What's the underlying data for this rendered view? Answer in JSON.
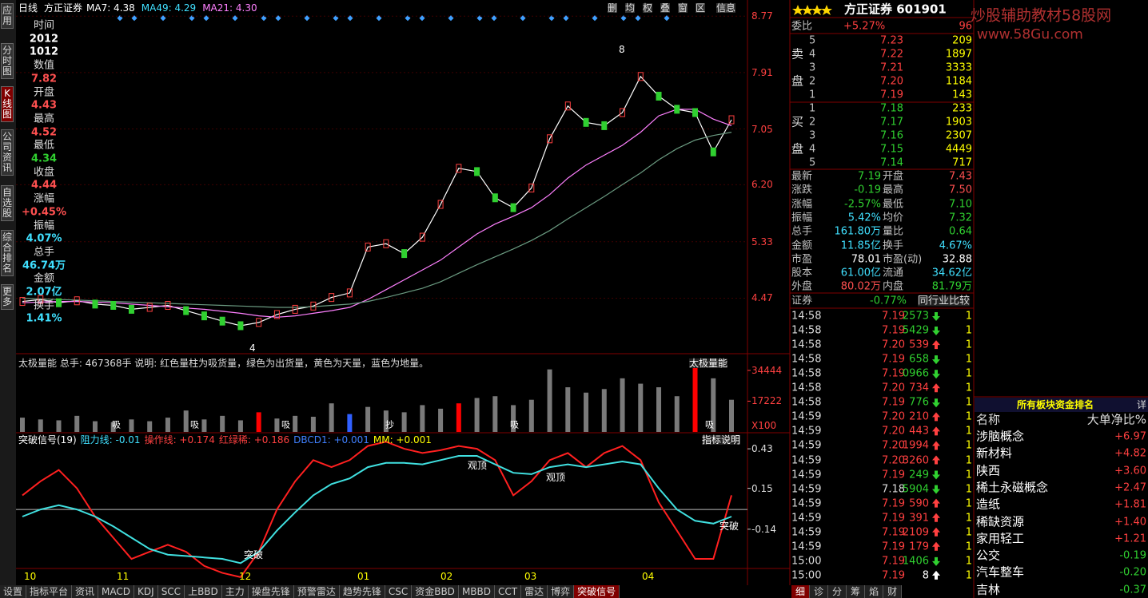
{
  "top_bar": {
    "period": "日线",
    "stock": "方正证券",
    "ma_labels": [
      {
        "text": "MA7: 4.38",
        "color": "#ffffff"
      },
      {
        "text": "MA49: 4.29",
        "color": "#40e0ff"
      },
      {
        "text": "MA21: 4.30",
        "color": "#ff80ff"
      }
    ],
    "buttons": [
      "删",
      "均",
      "权",
      "叠",
      "窗",
      "区",
      "信息"
    ]
  },
  "sidebar": [
    "应用",
    "分时图",
    "K线图",
    "公司资讯",
    "自选股",
    "综合排名",
    "更多"
  ],
  "info_panel": [
    {
      "label": "时间",
      "values": [
        "2012",
        "1012"
      ],
      "color": "#ffffff"
    },
    {
      "label": "数值",
      "values": [
        "7.82"
      ],
      "color": "#ff5050"
    },
    {
      "label": "开盘",
      "values": [
        "4.43"
      ],
      "color": "#ff5050"
    },
    {
      "label": "最高",
      "values": [
        "4.52"
      ],
      "color": "#ff5050"
    },
    {
      "label": "最低",
      "values": [
        "4.34"
      ],
      "color": "#30d030"
    },
    {
      "label": "收盘",
      "values": [
        "4.44"
      ],
      "color": "#ff5050"
    },
    {
      "label": "涨幅",
      "values": [
        "+0.45%"
      ],
      "color": "#ff5050"
    },
    {
      "label": "振幅",
      "values": [
        "4.07%"
      ],
      "color": "#40e0ff"
    },
    {
      "label": "总手",
      "values": [
        "46.74万"
      ],
      "color": "#40e0ff"
    },
    {
      "label": "金额",
      "values": [
        "2.07亿"
      ],
      "color": "#40e0ff"
    },
    {
      "label": "换手",
      "values": [
        "1.41%"
      ],
      "color": "#40e0ff"
    }
  ],
  "price_chart": {
    "type": "line",
    "ylim": [
      3.66,
      8.87
    ],
    "yticks": [
      8.77,
      7.91,
      7.05,
      {
        "value": 6.2,
        "label": "6.20"
      },
      5.33,
      4.47
    ],
    "series": [
      {
        "color": "#ffffff",
        "values": [
          4.42,
          4.45,
          4.4,
          4.43,
          4.38,
          4.36,
          4.3,
          4.33,
          4.36,
          4.28,
          4.2,
          4.12,
          4.05,
          4.1,
          4.22,
          4.3,
          4.35,
          4.48,
          4.55,
          5.25,
          5.3,
          5.15,
          5.4,
          5.9,
          6.45,
          6.4,
          6.0,
          5.85,
          6.15,
          6.9,
          7.4,
          7.15,
          7.1,
          7.3,
          7.85,
          7.55,
          7.35,
          7.3,
          6.7,
          7.19
        ]
      },
      {
        "color": "#ff80ff",
        "values": [
          4.4,
          4.41,
          4.42,
          4.42,
          4.41,
          4.4,
          4.38,
          4.36,
          4.34,
          4.32,
          4.3,
          4.27,
          4.24,
          4.2,
          4.18,
          4.2,
          4.24,
          4.28,
          4.33,
          4.45,
          4.6,
          4.75,
          4.9,
          5.05,
          5.25,
          5.45,
          5.6,
          5.72,
          5.85,
          6.05,
          6.3,
          6.5,
          6.65,
          6.8,
          7.0,
          7.25,
          7.35,
          7.35,
          7.2,
          7.1
        ]
      },
      {
        "color": "#6a9a80",
        "values": [
          4.47,
          4.46,
          4.45,
          4.44,
          4.43,
          4.42,
          4.41,
          4.4,
          4.39,
          4.38,
          4.37,
          4.36,
          4.35,
          4.34,
          4.33,
          4.33,
          4.34,
          4.36,
          4.38,
          4.42,
          4.48,
          4.55,
          4.62,
          4.72,
          4.85,
          4.98,
          5.1,
          5.22,
          5.35,
          5.5,
          5.68,
          5.85,
          6.02,
          6.2,
          6.38,
          6.58,
          6.75,
          6.88,
          6.95,
          7.0
        ]
      }
    ],
    "annotations": [
      "8",
      "4"
    ],
    "x_labels": [
      "10",
      "11",
      "12",
      "01",
      "02",
      "03",
      "04"
    ]
  },
  "volume_chart": {
    "type": "bar",
    "title": "太极量能 总手: 467368手 说明: 红色量柱为吸货量，绿色为出货量，黄色为天量，蓝色为地量。",
    "selector": "太极量能",
    "ylim": [
      0,
      42000
    ],
    "yticks": [
      34444,
      17222
    ],
    "unit_label": "X100",
    "values": [
      8000,
      7000,
      6500,
      9000,
      6000,
      5500,
      7000,
      6000,
      8000,
      12000,
      7000,
      9000,
      6500,
      11000,
      7500,
      9000,
      8500,
      16000,
      10000,
      14000,
      12000,
      11000,
      15000,
      13000,
      16000,
      19000,
      20000,
      15000,
      18000,
      35000,
      25000,
      22000,
      24000,
      30000,
      27000,
      25000,
      20000,
      36000,
      30000,
      18000
    ],
    "colors": [
      "#7a7a7a",
      "#7a7a7a",
      "#7a7a7a",
      "#7a7a7a",
      "#7a7a7a",
      "#7a7a7a",
      "#7a7a7a",
      "#7a7a7a",
      "#7a7a7a",
      "#7a7a7a",
      "#7a7a7a",
      "#7a7a7a",
      "#7a7a7a",
      "#ff0000",
      "#7a7a7a",
      "#7a7a7a",
      "#7a7a7a",
      "#7a7a7a",
      "#3060ff",
      "#7a7a7a",
      "#7a7a7a",
      "#7a7a7a",
      "#7a7a7a",
      "#7a7a7a",
      "#ff0000",
      "#7a7a7a",
      "#7a7a7a",
      "#7a7a7a",
      "#7a7a7a",
      "#7a7a7a",
      "#7a7a7a",
      "#7a7a7a",
      "#7a7a7a",
      "#7a7a7a",
      "#7a7a7a",
      "#7a7a7a",
      "#7a7a7a",
      "#ff0000",
      "#7a7a7a",
      "#7a7a7a"
    ],
    "annotations": [
      "吸",
      "吸",
      "吸",
      "抄",
      "吸",
      "吸"
    ]
  },
  "indicator_chart": {
    "type": "line",
    "title_parts": [
      {
        "text": "突破信号(19)",
        "color": "#ffffff"
      },
      {
        "text": "阻力线: -0.01",
        "color": "#40e0ff"
      },
      {
        "text": "操作线: +0.174",
        "color": "#ff4040"
      },
      {
        "text": "红绿稀: +0.186",
        "color": "#ff4040"
      },
      {
        "text": "DBCD1: +0.001",
        "color": "#4080ff"
      },
      {
        "text": "MM: +0.001",
        "color": "#ffff00"
      }
    ],
    "button": "指标说明",
    "ylim": [
      -0.52,
      0.51
    ],
    "yticks": [
      0.43,
      0.15,
      -0.14
    ],
    "series": [
      {
        "color": "#ff2020",
        "values": [
          0.1,
          0.2,
          0.28,
          0.15,
          -0.05,
          -0.2,
          -0.35,
          -0.3,
          -0.25,
          -0.3,
          -0.4,
          -0.45,
          -0.48,
          -0.3,
          0.0,
          0.2,
          0.35,
          0.3,
          0.35,
          0.45,
          0.48,
          0.43,
          0.4,
          0.42,
          0.45,
          0.43,
          0.35,
          0.1,
          0.2,
          0.35,
          0.4,
          0.3,
          0.4,
          0.45,
          0.35,
          0.05,
          -0.15,
          -0.35,
          -0.35,
          0.1
        ]
      },
      {
        "color": "#40e0e0",
        "values": [
          -0.05,
          0.0,
          0.03,
          0.0,
          -0.05,
          -0.12,
          -0.2,
          -0.28,
          -0.32,
          -0.33,
          -0.34,
          -0.35,
          -0.38,
          -0.3,
          -0.15,
          -0.02,
          0.1,
          0.18,
          0.22,
          0.3,
          0.33,
          0.33,
          0.32,
          0.35,
          0.38,
          0.38,
          0.32,
          0.26,
          0.25,
          0.3,
          0.32,
          0.3,
          0.32,
          0.34,
          0.32,
          0.15,
          0.0,
          -0.08,
          -0.1,
          -0.05
        ]
      }
    ],
    "annotations": [
      "突破",
      "观顶",
      "观顶",
      "突破"
    ]
  },
  "bottom_tabs": [
    "设置",
    "指标平台",
    "资讯",
    "MACD",
    "KDJ",
    "SCC",
    "上BBD",
    "主力",
    "操盘先锋",
    "预警雷达",
    "趋势先锋",
    "CSC",
    "资金BBD",
    "MBBD",
    "CCT",
    "雷达",
    "博弈",
    "突破信号"
  ],
  "quote": {
    "title": "方正证券 601901",
    "weibi": {
      "label": "委比",
      "ratio": "+5.27%",
      "diff": "96"
    },
    "sell_label": [
      "卖",
      "盘"
    ],
    "buy_label": [
      "买",
      "盘"
    ],
    "sell": [
      [
        "5",
        "7.23",
        "209"
      ],
      [
        "4",
        "7.22",
        "1897"
      ],
      [
        "3",
        "7.21",
        "3333"
      ],
      [
        "2",
        "7.20",
        "1184"
      ],
      [
        "1",
        "7.19",
        "143"
      ]
    ],
    "buy": [
      [
        "1",
        "7.18",
        "233"
      ],
      [
        "2",
        "7.17",
        "1903"
      ],
      [
        "3",
        "7.16",
        "2307"
      ],
      [
        "4",
        "7.15",
        "4449"
      ],
      [
        "5",
        "7.14",
        "717"
      ]
    ],
    "stats": [
      [
        {
          "t": "最新",
          "c": "#c0c0c0"
        },
        {
          "t": "7.19",
          "c": "#30d030"
        },
        {
          "t": "开盘",
          "c": "#c0c0c0"
        },
        {
          "t": "7.43",
          "c": "#ff5050"
        }
      ],
      [
        {
          "t": "涨跌",
          "c": "#c0c0c0"
        },
        {
          "t": "-0.19",
          "c": "#30d030"
        },
        {
          "t": "最高",
          "c": "#c0c0c0"
        },
        {
          "t": "7.50",
          "c": "#ff5050"
        }
      ],
      [
        {
          "t": "涨幅",
          "c": "#c0c0c0"
        },
        {
          "t": "-2.57%",
          "c": "#30d030"
        },
        {
          "t": "最低",
          "c": "#c0c0c0"
        },
        {
          "t": "7.10",
          "c": "#30d030"
        }
      ],
      [
        {
          "t": "振幅",
          "c": "#c0c0c0"
        },
        {
          "t": "5.42%",
          "c": "#40e0ff"
        },
        {
          "t": "均价",
          "c": "#c0c0c0"
        },
        {
          "t": "7.32",
          "c": "#30d030"
        }
      ],
      [
        {
          "t": "总手",
          "c": "#c0c0c0"
        },
        {
          "t": "161.80万",
          "c": "#40e0ff"
        },
        {
          "t": "量比",
          "c": "#c0c0c0"
        },
        {
          "t": "0.64",
          "c": "#30d030"
        }
      ],
      [
        {
          "t": "金额",
          "c": "#c0c0c0"
        },
        {
          "t": "11.85亿",
          "c": "#40e0ff"
        },
        {
          "t": "换手",
          "c": "#c0c0c0"
        },
        {
          "t": "4.67%",
          "c": "#40e0ff"
        }
      ],
      [
        {
          "t": "市盈",
          "c": "#c0c0c0"
        },
        {
          "t": "78.01",
          "c": "#ffffff"
        },
        {
          "t": "市盈(动)",
          "c": "#c0c0c0"
        },
        {
          "t": "32.88",
          "c": "#ffffff"
        }
      ],
      [
        {
          "t": "股本",
          "c": "#c0c0c0"
        },
        {
          "t": "61.00亿",
          "c": "#40e0ff"
        },
        {
          "t": "流通",
          "c": "#c0c0c0"
        },
        {
          "t": "34.62亿",
          "c": "#40e0ff"
        }
      ],
      [
        {
          "t": "外盘",
          "c": "#c0c0c0"
        },
        {
          "t": "80.02万",
          "c": "#ff5050"
        },
        {
          "t": "内盘",
          "c": "#c0c0c0"
        },
        {
          "t": "81.79万",
          "c": "#30d030"
        }
      ]
    ],
    "sector": {
      "name": "证券",
      "change": "-0.77%",
      "button": "同行业比较"
    },
    "ticks": [
      {
        "time": "14:58",
        "price": "7.19",
        "vol": "2573",
        "color": "#30d030",
        "n": "1"
      },
      {
        "time": "14:58",
        "price": "7.19",
        "vol": "5429",
        "color": "#30d030",
        "n": "1"
      },
      {
        "time": "14:58",
        "price": "7.20",
        "vol": "539",
        "color": "#ff4040",
        "n": "1"
      },
      {
        "time": "14:58",
        "price": "7.19",
        "vol": "658",
        "color": "#30d030",
        "n": "1"
      },
      {
        "time": "14:58",
        "price": "7.19",
        "vol": "0966",
        "color": "#30d030",
        "n": "1"
      },
      {
        "time": "14:58",
        "price": "7.20",
        "vol": "734",
        "color": "#ff4040",
        "n": "1"
      },
      {
        "time": "14:58",
        "price": "7.19",
        "vol": "776",
        "color": "#30d030",
        "n": "1"
      },
      {
        "time": "14:59",
        "price": "7.20",
        "vol": "210",
        "color": "#ff4040",
        "n": "1"
      },
      {
        "time": "14:59",
        "price": "7.20",
        "vol": "443",
        "color": "#ff4040",
        "n": "1"
      },
      {
        "time": "14:59",
        "price": "7.20",
        "vol": "1994",
        "color": "#ff4040",
        "n": "1"
      },
      {
        "time": "14:59",
        "price": "7.20",
        "vol": "3260",
        "color": "#ff4040",
        "n": "1"
      },
      {
        "time": "14:59",
        "price": "7.19",
        "vol": "249",
        "color": "#30d030",
        "n": "1"
      },
      {
        "time": "14:59",
        "price": "7.18",
        "vol": "5904",
        "color": "#30d030",
        "n": "1"
      },
      {
        "time": "14:59",
        "price": "7.19",
        "vol": "590",
        "color": "#ff4040",
        "n": "1"
      },
      {
        "time": "14:59",
        "price": "7.19",
        "vol": "391",
        "color": "#ff4040",
        "n": "1"
      },
      {
        "time": "14:59",
        "price": "7.19",
        "vol": "2109",
        "color": "#ff4040",
        "n": "1"
      },
      {
        "time": "14:59",
        "price": "7.19",
        "vol": "179",
        "color": "#ff4040",
        "n": "1"
      },
      {
        "time": "15:00",
        "price": "7.19",
        "vol": "1406",
        "color": "#30d030",
        "n": "1"
      },
      {
        "time": "15:00",
        "price": "7.19",
        "vol": "8",
        "color": "#ffffff",
        "n": "1"
      }
    ],
    "tabs": [
      "细",
      "诊",
      "分",
      "筹",
      "焰",
      "财"
    ]
  },
  "watermark": [
    "炒股辅助教材58股网",
    "www.58Gu.com"
  ],
  "board": {
    "title": "所有板块资金排名",
    "detail": "详",
    "columns": [
      "名称",
      "大单净比%"
    ],
    "rows": [
      [
        "涉脑概念",
        "+6.97"
      ],
      [
        "新材料",
        "+4.82"
      ],
      [
        "陕西",
        "+3.60"
      ],
      [
        "稀土永磁概念",
        "+2.47"
      ],
      [
        "造纸",
        "+1.81"
      ],
      [
        "稀缺资源",
        "+1.40"
      ],
      [
        "家用轻工",
        "+1.21"
      ],
      [
        "公交",
        "-0.19"
      ],
      [
        "汽车整车",
        "-0.20"
      ],
      [
        "吉林",
        "-0.37"
      ]
    ]
  }
}
